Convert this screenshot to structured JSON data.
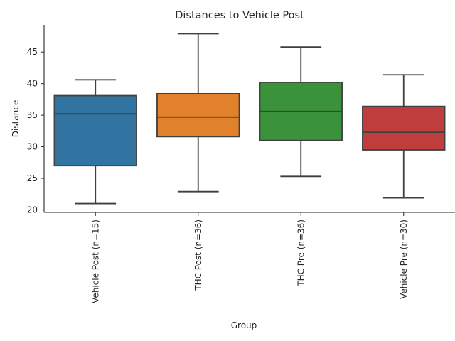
{
  "chart_data": {
    "type": "box",
    "title": "Distances to Vehicle Post",
    "xlabel": "Group",
    "ylabel": "Distance",
    "ylim": [
      19.6,
      49.3
    ],
    "yticks": [
      20,
      25,
      30,
      35,
      40,
      45
    ],
    "ytick_labels": [
      "20",
      "25",
      "30",
      "35",
      "40",
      "45"
    ],
    "grid": false,
    "legend": "none",
    "categories": [
      "Vehicle Post (n=15)",
      "THC Post (n=36)",
      "THC Pre (n=36)",
      "Vehicle Pre (n=30)"
    ],
    "series": [
      {
        "whisker_low": 21.0,
        "q1": 27.0,
        "median": 35.2,
        "q3": 38.1,
        "whisker_high": 40.6,
        "color": "#3274a1"
      },
      {
        "whisker_low": 22.9,
        "q1": 31.6,
        "median": 34.7,
        "q3": 38.4,
        "whisker_high": 47.9,
        "color": "#e1812c"
      },
      {
        "whisker_low": 25.3,
        "q1": 31.0,
        "median": 35.6,
        "q3": 40.2,
        "whisker_high": 45.8,
        "color": "#3a923a"
      },
      {
        "whisker_low": 21.9,
        "q1": 29.5,
        "median": 32.3,
        "q3": 36.4,
        "whisker_high": 41.4,
        "color": "#c03d3e"
      }
    ]
  }
}
